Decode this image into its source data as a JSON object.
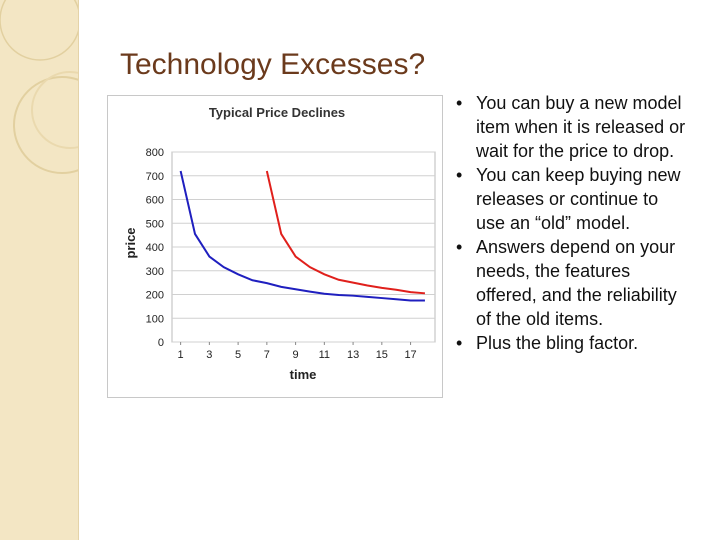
{
  "title": "Technology Excesses?",
  "bullets": [
    "You can buy a new model item when it is released or wait for the price to drop.",
    "You can keep buying new releases or continue to use an “old” model.",
    "Answers depend on your needs, the features offered, and the reliability of the old items.",
    "Plus the bling factor."
  ],
  "chart_data": {
    "type": "line",
    "title": "Typical Price Declines",
    "x_label": "time",
    "y_label": "price",
    "x": [
      1,
      2,
      3,
      4,
      5,
      6,
      7,
      8,
      9,
      10,
      11,
      12,
      13,
      14,
      15,
      16,
      17,
      18
    ],
    "series": [
      {
        "color": "#1f1fbf",
        "values": [
          720,
          455,
          360,
          315,
          285,
          260,
          248,
          232,
          222,
          212,
          203,
          198,
          195,
          190,
          185,
          180,
          175,
          175
        ]
      },
      {
        "color": "#e0201c",
        "values": [
          null,
          null,
          null,
          null,
          null,
          null,
          720,
          455,
          360,
          315,
          285,
          262,
          250,
          238,
          228,
          220,
          210,
          205
        ]
      }
    ],
    "xlim": [
      0.4,
      18.7
    ],
    "ylim": [
      0,
      800
    ],
    "xticks": [
      1,
      3,
      5,
      7,
      9,
      11,
      13,
      15,
      17
    ],
    "yticks": [
      0,
      100,
      200,
      300,
      400,
      500,
      600,
      700,
      800
    ],
    "grid": true
  }
}
